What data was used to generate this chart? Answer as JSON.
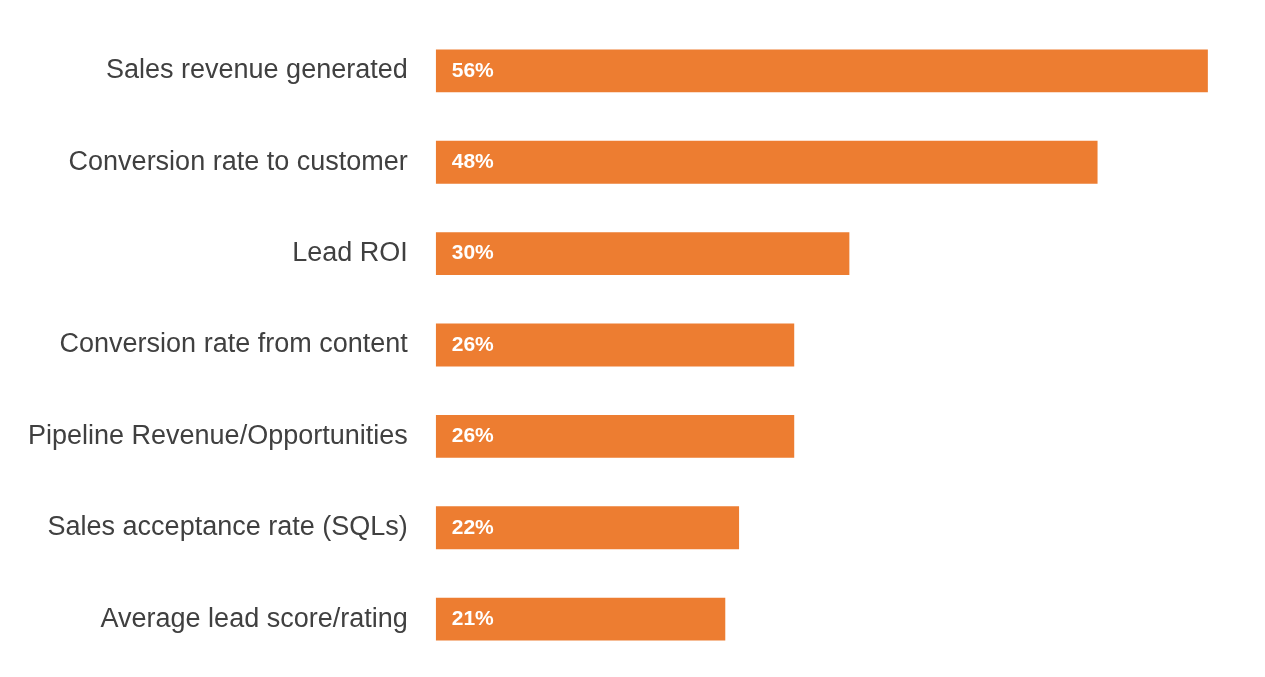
{
  "chart_data": {
    "type": "bar",
    "orientation": "horizontal",
    "categories": [
      "Sales revenue generated",
      "Conversion rate to customer",
      "Lead ROI",
      "Conversion rate from content",
      "Pipeline Revenue/Opportunities",
      "Sales acceptance rate (SQLs)",
      "Average lead score/rating"
    ],
    "values": [
      56,
      48,
      30,
      26,
      26,
      22,
      21
    ],
    "color": "#ed7d31",
    "value_labels": [
      "56%",
      "48%",
      "30%",
      "26%",
      "26%",
      "22%",
      "21%"
    ],
    "legend": false
  }
}
